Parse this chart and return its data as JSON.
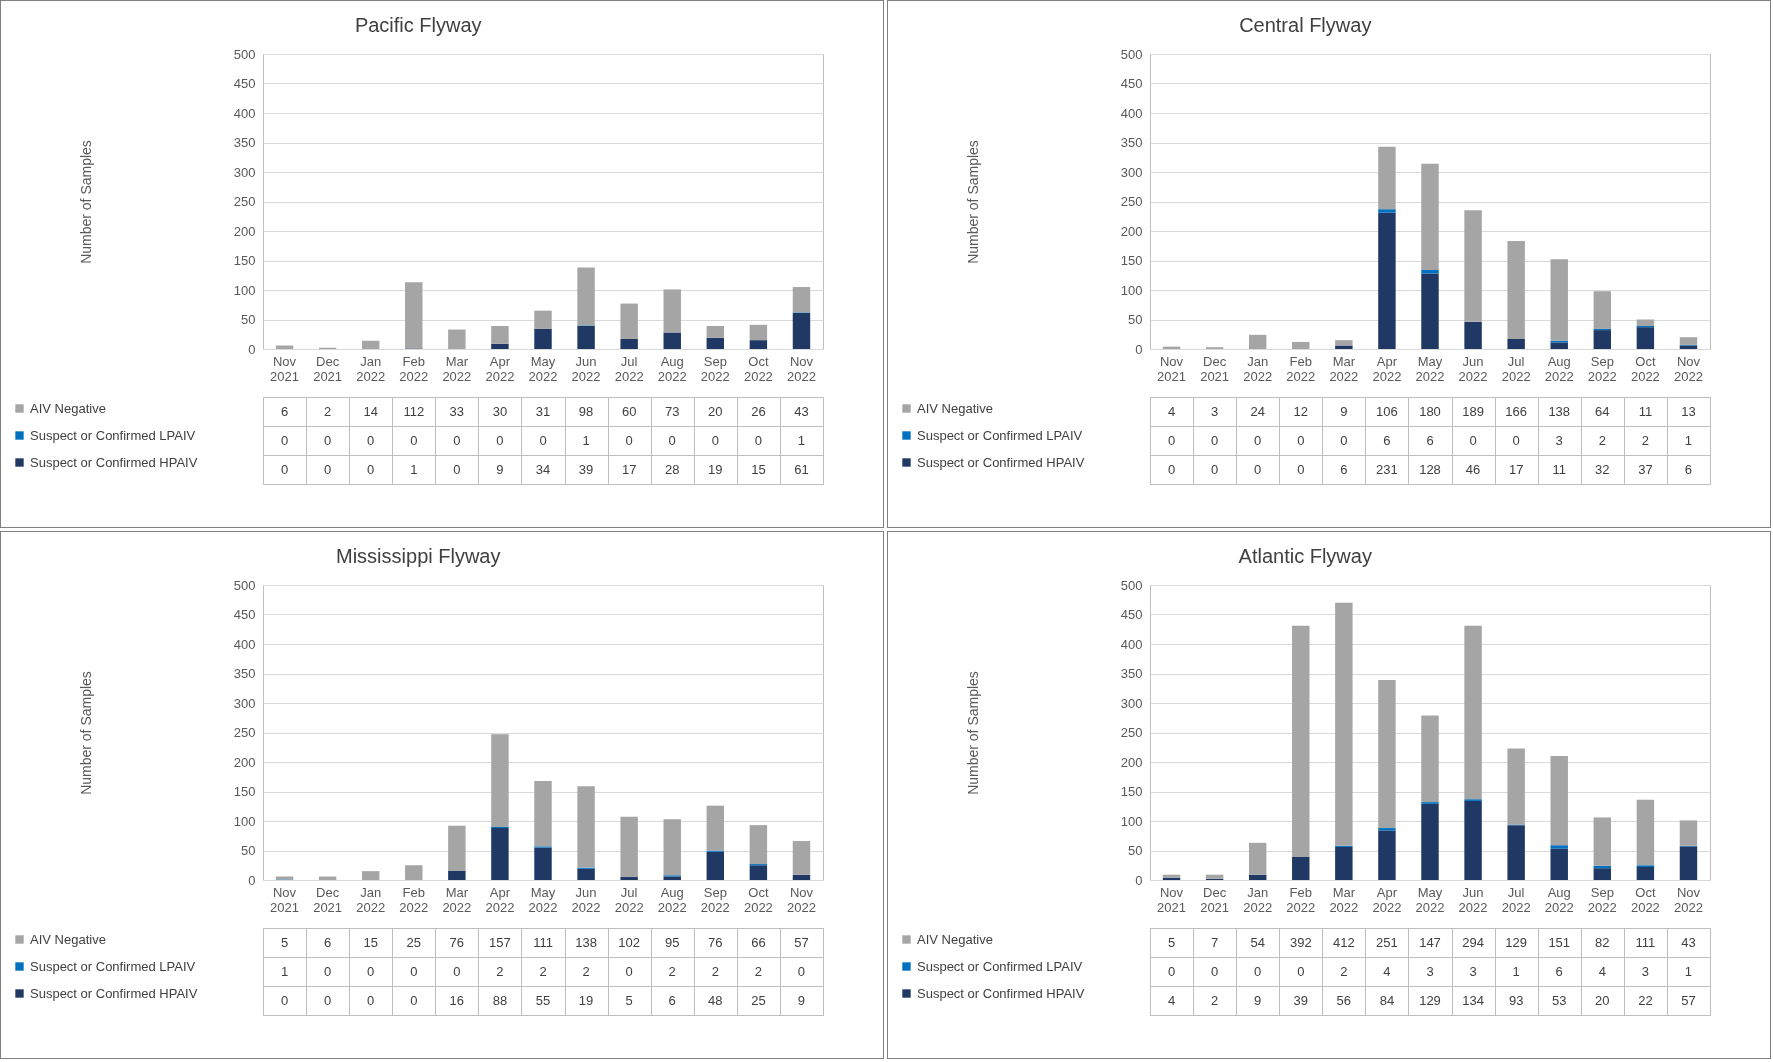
{
  "chart_data": [
    {
      "type": "bar",
      "title": "Pacific Flyway",
      "ylabel": "Number of Samples",
      "stacked": true,
      "grid": "y",
      "legend": "bottom",
      "data_labels": true,
      "ylim": [
        0,
        500
      ],
      "yticks": [
        0,
        50,
        100,
        150,
        200,
        250,
        300,
        350,
        400,
        450,
        500
      ],
      "categories": [
        "Nov 2021",
        "Dec 2021",
        "Jan 2022",
        "Feb 2022",
        "Mar 2022",
        "Apr 2022",
        "May 2022",
        "Jun 2022",
        "Jul 2022",
        "Aug 2022",
        "Sep 2022",
        "Oct 2022",
        "Nov 2022"
      ],
      "series": [
        {
          "name": "Suspect or Confirmed HPAIV",
          "color": "#1f3864",
          "values": [
            0,
            0,
            0,
            1,
            0,
            9,
            34,
            39,
            17,
            28,
            19,
            15,
            61
          ]
        },
        {
          "name": "Suspect or Confirmed LPAIV",
          "color": "#0070c0",
          "values": [
            0,
            0,
            0,
            0,
            0,
            0,
            0,
            1,
            0,
            0,
            0,
            0,
            1
          ]
        },
        {
          "name": "AIV Negative",
          "color": "#a5a5a5",
          "values": [
            6,
            2,
            14,
            112,
            33,
            30,
            31,
            98,
            60,
            73,
            20,
            26,
            43
          ]
        }
      ]
    },
    {
      "type": "bar",
      "title": "Central Flyway",
      "ylabel": "Number of Samples",
      "stacked": true,
      "grid": "y",
      "legend": "bottom",
      "data_labels": true,
      "ylim": [
        0,
        500
      ],
      "yticks": [
        0,
        50,
        100,
        150,
        200,
        250,
        300,
        350,
        400,
        450,
        500
      ],
      "categories": [
        "Nov 2021",
        "Dec 2021",
        "Jan 2022",
        "Feb 2022",
        "Mar 2022",
        "Apr 2022",
        "May 2022",
        "Jun 2022",
        "Jul 2022",
        "Aug 2022",
        "Sep 2022",
        "Oct 2022",
        "Nov 2022"
      ],
      "series": [
        {
          "name": "Suspect or Confirmed HPAIV",
          "color": "#1f3864",
          "values": [
            0,
            0,
            0,
            0,
            6,
            231,
            128,
            46,
            17,
            11,
            32,
            37,
            6
          ]
        },
        {
          "name": "Suspect or Confirmed LPAIV",
          "color": "#0070c0",
          "values": [
            0,
            0,
            0,
            0,
            0,
            6,
            6,
            0,
            0,
            3,
            2,
            2,
            1
          ]
        },
        {
          "name": "AIV Negative",
          "color": "#a5a5a5",
          "values": [
            4,
            3,
            24,
            12,
            9,
            106,
            180,
            189,
            166,
            138,
            64,
            11,
            13
          ]
        }
      ]
    },
    {
      "type": "bar",
      "title": "Mississippi Flyway",
      "ylabel": "Number of Samples",
      "stacked": true,
      "grid": "y",
      "legend": "bottom",
      "data_labels": true,
      "ylim": [
        0,
        500
      ],
      "yticks": [
        0,
        50,
        100,
        150,
        200,
        250,
        300,
        350,
        400,
        450,
        500
      ],
      "categories": [
        "Nov 2021",
        "Dec 2021",
        "Jan 2022",
        "Feb 2022",
        "Mar 2022",
        "Apr 2022",
        "May 2022",
        "Jun 2022",
        "Jul 2022",
        "Aug 2022",
        "Sep 2022",
        "Oct 2022",
        "Nov 2022"
      ],
      "series": [
        {
          "name": "Suspect or Confirmed HPAIV",
          "color": "#1f3864",
          "values": [
            0,
            0,
            0,
            0,
            16,
            88,
            55,
            19,
            5,
            6,
            48,
            25,
            9
          ]
        },
        {
          "name": "Suspect or Confirmed LPAIV",
          "color": "#0070c0",
          "values": [
            1,
            0,
            0,
            0,
            0,
            2,
            2,
            2,
            0,
            2,
            2,
            2,
            0
          ]
        },
        {
          "name": "AIV Negative",
          "color": "#a5a5a5",
          "values": [
            5,
            6,
            15,
            25,
            76,
            157,
            111,
            138,
            102,
            95,
            76,
            66,
            57
          ]
        }
      ]
    },
    {
      "type": "bar",
      "title": "Atlantic Flyway",
      "ylabel": "Number of Samples",
      "stacked": true,
      "grid": "y",
      "legend": "bottom",
      "data_labels": true,
      "ylim": [
        0,
        500
      ],
      "yticks": [
        0,
        50,
        100,
        150,
        200,
        250,
        300,
        350,
        400,
        450,
        500
      ],
      "categories": [
        "Nov 2021",
        "Dec 2021",
        "Jan 2022",
        "Feb 2022",
        "Mar 2022",
        "Apr 2022",
        "May 2022",
        "Jun 2022",
        "Jul 2022",
        "Aug 2022",
        "Sep 2022",
        "Oct 2022",
        "Nov 2022"
      ],
      "series": [
        {
          "name": "Suspect or Confirmed HPAIV",
          "color": "#1f3864",
          "values": [
            4,
            2,
            9,
            39,
            56,
            84,
            129,
            134,
            93,
            53,
            20,
            22,
            57
          ]
        },
        {
          "name": "Suspect or Confirmed LPAIV",
          "color": "#0070c0",
          "values": [
            0,
            0,
            0,
            0,
            2,
            4,
            3,
            3,
            1,
            6,
            4,
            3,
            1
          ]
        },
        {
          "name": "AIV Negative",
          "color": "#a5a5a5",
          "values": [
            5,
            7,
            54,
            392,
            412,
            251,
            147,
            294,
            129,
            151,
            82,
            111,
            43
          ]
        }
      ]
    }
  ]
}
